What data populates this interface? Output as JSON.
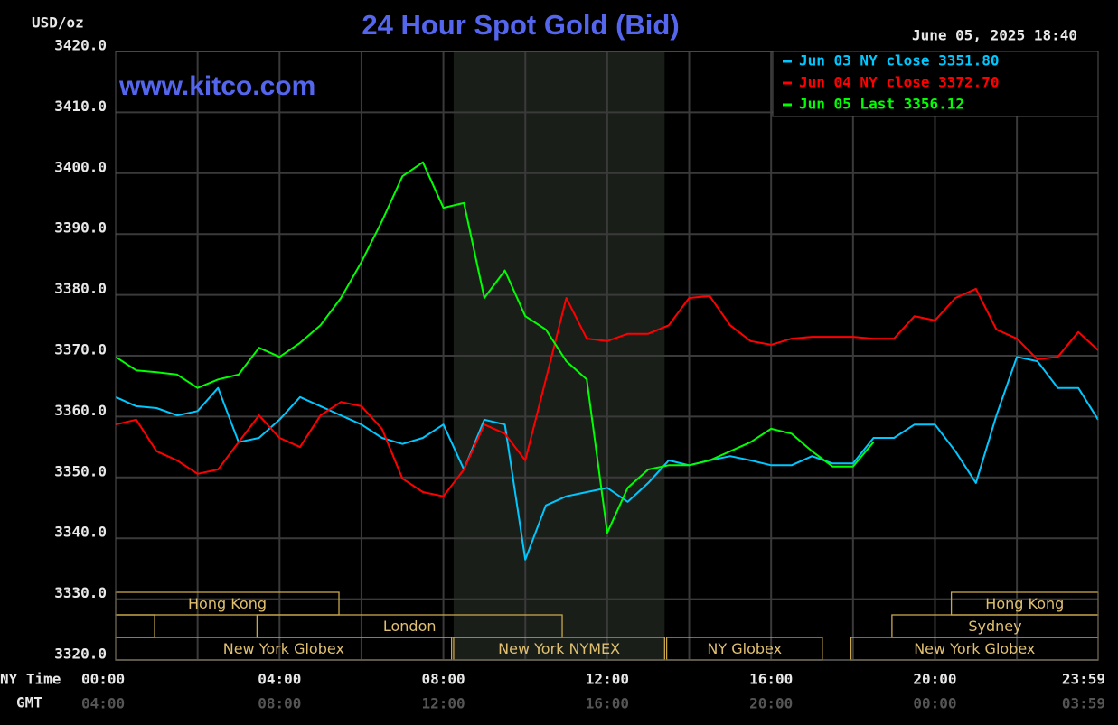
{
  "chart_data": {
    "type": "line",
    "title": "24 Hour Spot Gold (Bid)",
    "y_unit": "USD/oz",
    "watermark": "www.kitco.com",
    "timestamp": "June 05, 2025 18:40",
    "x_axis_label": "NY Time",
    "x2_axis_label": "GMT",
    "xlim": [
      0,
      23.983
    ],
    "xticks": [
      {
        "value": 0,
        "label": "00:00"
      },
      {
        "value": 4,
        "label": "04:00"
      },
      {
        "value": 8,
        "label": "08:00"
      },
      {
        "value": 12,
        "label": "12:00"
      },
      {
        "value": 16,
        "label": "16:00"
      },
      {
        "value": 20,
        "label": "20:00"
      },
      {
        "value": 23.983,
        "label": "23:59"
      }
    ],
    "x2ticks": [
      {
        "value": 0,
        "label": "04:00"
      },
      {
        "value": 4,
        "label": "08:00"
      },
      {
        "value": 8,
        "label": "12:00"
      },
      {
        "value": 12,
        "label": "16:00"
      },
      {
        "value": 16,
        "label": "20:00"
      },
      {
        "value": 20,
        "label": "00:00"
      },
      {
        "value": 23.983,
        "label": "03:59"
      }
    ],
    "xgrid": [
      2,
      4,
      6,
      8,
      10,
      12,
      14,
      16,
      18,
      20,
      22
    ],
    "ylim": [
      3320,
      3420
    ],
    "yticks": [
      {
        "value": 3320,
        "label": "3320.0"
      },
      {
        "value": 3330,
        "label": "3330.0"
      },
      {
        "value": 3340,
        "label": "3340.0"
      },
      {
        "value": 3350,
        "label": "3350.0"
      },
      {
        "value": 3360,
        "label": "3360.0"
      },
      {
        "value": 3370,
        "label": "3370.0"
      },
      {
        "value": 3380,
        "label": "3380.0"
      },
      {
        "value": 3390,
        "label": "3390.0"
      },
      {
        "value": 3400,
        "label": "3400.0"
      },
      {
        "value": 3410,
        "label": "3410.0"
      },
      {
        "value": 3420,
        "label": "3420.0"
      }
    ],
    "grid": true,
    "legend": "top-right",
    "x": [
      0,
      0.5,
      1,
      1.5,
      2,
      2.5,
      3,
      3.5,
      4,
      4.5,
      5,
      5.5,
      6,
      6.5,
      7,
      7.5,
      8,
      8.5,
      9,
      9.5,
      10,
      10.5,
      11,
      11.5,
      12,
      12.5,
      13,
      13.5,
      14,
      14.5,
      15,
      15.5,
      16,
      16.5,
      17,
      17.5,
      18,
      18.5,
      19,
      19.5,
      20,
      20.5,
      21,
      21.5,
      22,
      22.5,
      23,
      23.5,
      23.983
    ],
    "series": [
      {
        "name": "Jun 03 NY close 3351.80",
        "color": "#00c8ff",
        "values": [
          3363.2,
          3361.7,
          3361.4,
          3360.2,
          3360.9,
          3364.7,
          3355.8,
          3356.5,
          3359.5,
          3363.2,
          3361.7,
          3360.2,
          3358.7,
          3356.5,
          3355.5,
          3356.5,
          3358.7,
          3351.3,
          3359.5,
          3358.7,
          3336.5,
          3345.4,
          3346.9,
          3347.6,
          3348.3,
          3346,
          3349.1,
          3352.8,
          3352,
          3352.8,
          3353.5,
          3352.8,
          3352,
          3352,
          3353.5,
          3352.3,
          3352.3,
          3356.5,
          3356.5,
          3358.7,
          3358.7,
          3354.3,
          3349.1,
          3360.2,
          3369.8,
          3369.1,
          3364.7,
          3364.7,
          3359.5
        ]
      },
      {
        "name": "Jun 04 NY close 3372.70",
        "color": "#ff0000",
        "values": [
          3358.7,
          3359.5,
          3354.3,
          3352.8,
          3350.6,
          3351.3,
          3355.8,
          3360.2,
          3356.5,
          3355,
          3360.2,
          3362.4,
          3361.7,
          3358,
          3349.8,
          3347.6,
          3346.9,
          3351.3,
          3358.7,
          3357.2,
          3352.8,
          3366.1,
          3379.5,
          3372.8,
          3372.4,
          3373.6,
          3373.6,
          3375,
          3379.5,
          3379.8,
          3375,
          3372.4,
          3371.8,
          3372.8,
          3373.1,
          3373.1,
          3373.1,
          3372.8,
          3372.8,
          3376.5,
          3375.8,
          3379.5,
          3381,
          3374.3,
          3372.8,
          3369.4,
          3369.8,
          3373.9,
          3370.9
        ]
      },
      {
        "name": "Jun 05 Last 3356.12",
        "color": "#00ff00",
        "values": [
          3369.8,
          3367.6,
          3367.3,
          3366.9,
          3364.7,
          3366.1,
          3366.9,
          3371.3,
          3369.8,
          3372.1,
          3375,
          3379.5,
          3385.4,
          3392.1,
          3399.5,
          3401.8,
          3394.3,
          3395.1,
          3379.5,
          3384,
          3376.5,
          3374.3,
          3369.1,
          3366.1,
          3340.9,
          3348.3,
          3351.3,
          3352,
          3352,
          3352.8,
          3354.3,
          3355.8,
          3358,
          3357.2,
          3354.3,
          3351.8,
          3351.8,
          3355.8,
          null,
          null,
          null,
          null,
          null,
          null,
          null,
          null,
          null,
          null,
          null
        ]
      }
    ],
    "session_rows": [
      [
        {
          "label": "Hong Kong",
          "start": 0,
          "end": 5.45
        },
        {
          "label": "Hong Kong",
          "start": 20.4,
          "end": 23.983
        }
      ],
      [
        {
          "label": null,
          "start": 0,
          "end": 0.95
        },
        {
          "label": "London",
          "start": 3.45,
          "end": 10.9
        },
        {
          "label": "Sydney",
          "start": 18.95,
          "end": 23.983
        }
      ],
      [
        {
          "label": "New York Globex",
          "start": 0,
          "end": 8.2
        },
        {
          "label": "New York NYMEX",
          "start": 8.25,
          "end": 13.4,
          "shade": true
        },
        {
          "label": "NY Globex",
          "start": 13.45,
          "end": 17.25
        },
        {
          "label": "New York Globex",
          "start": 17.95,
          "end": 23.983
        }
      ]
    ]
  }
}
